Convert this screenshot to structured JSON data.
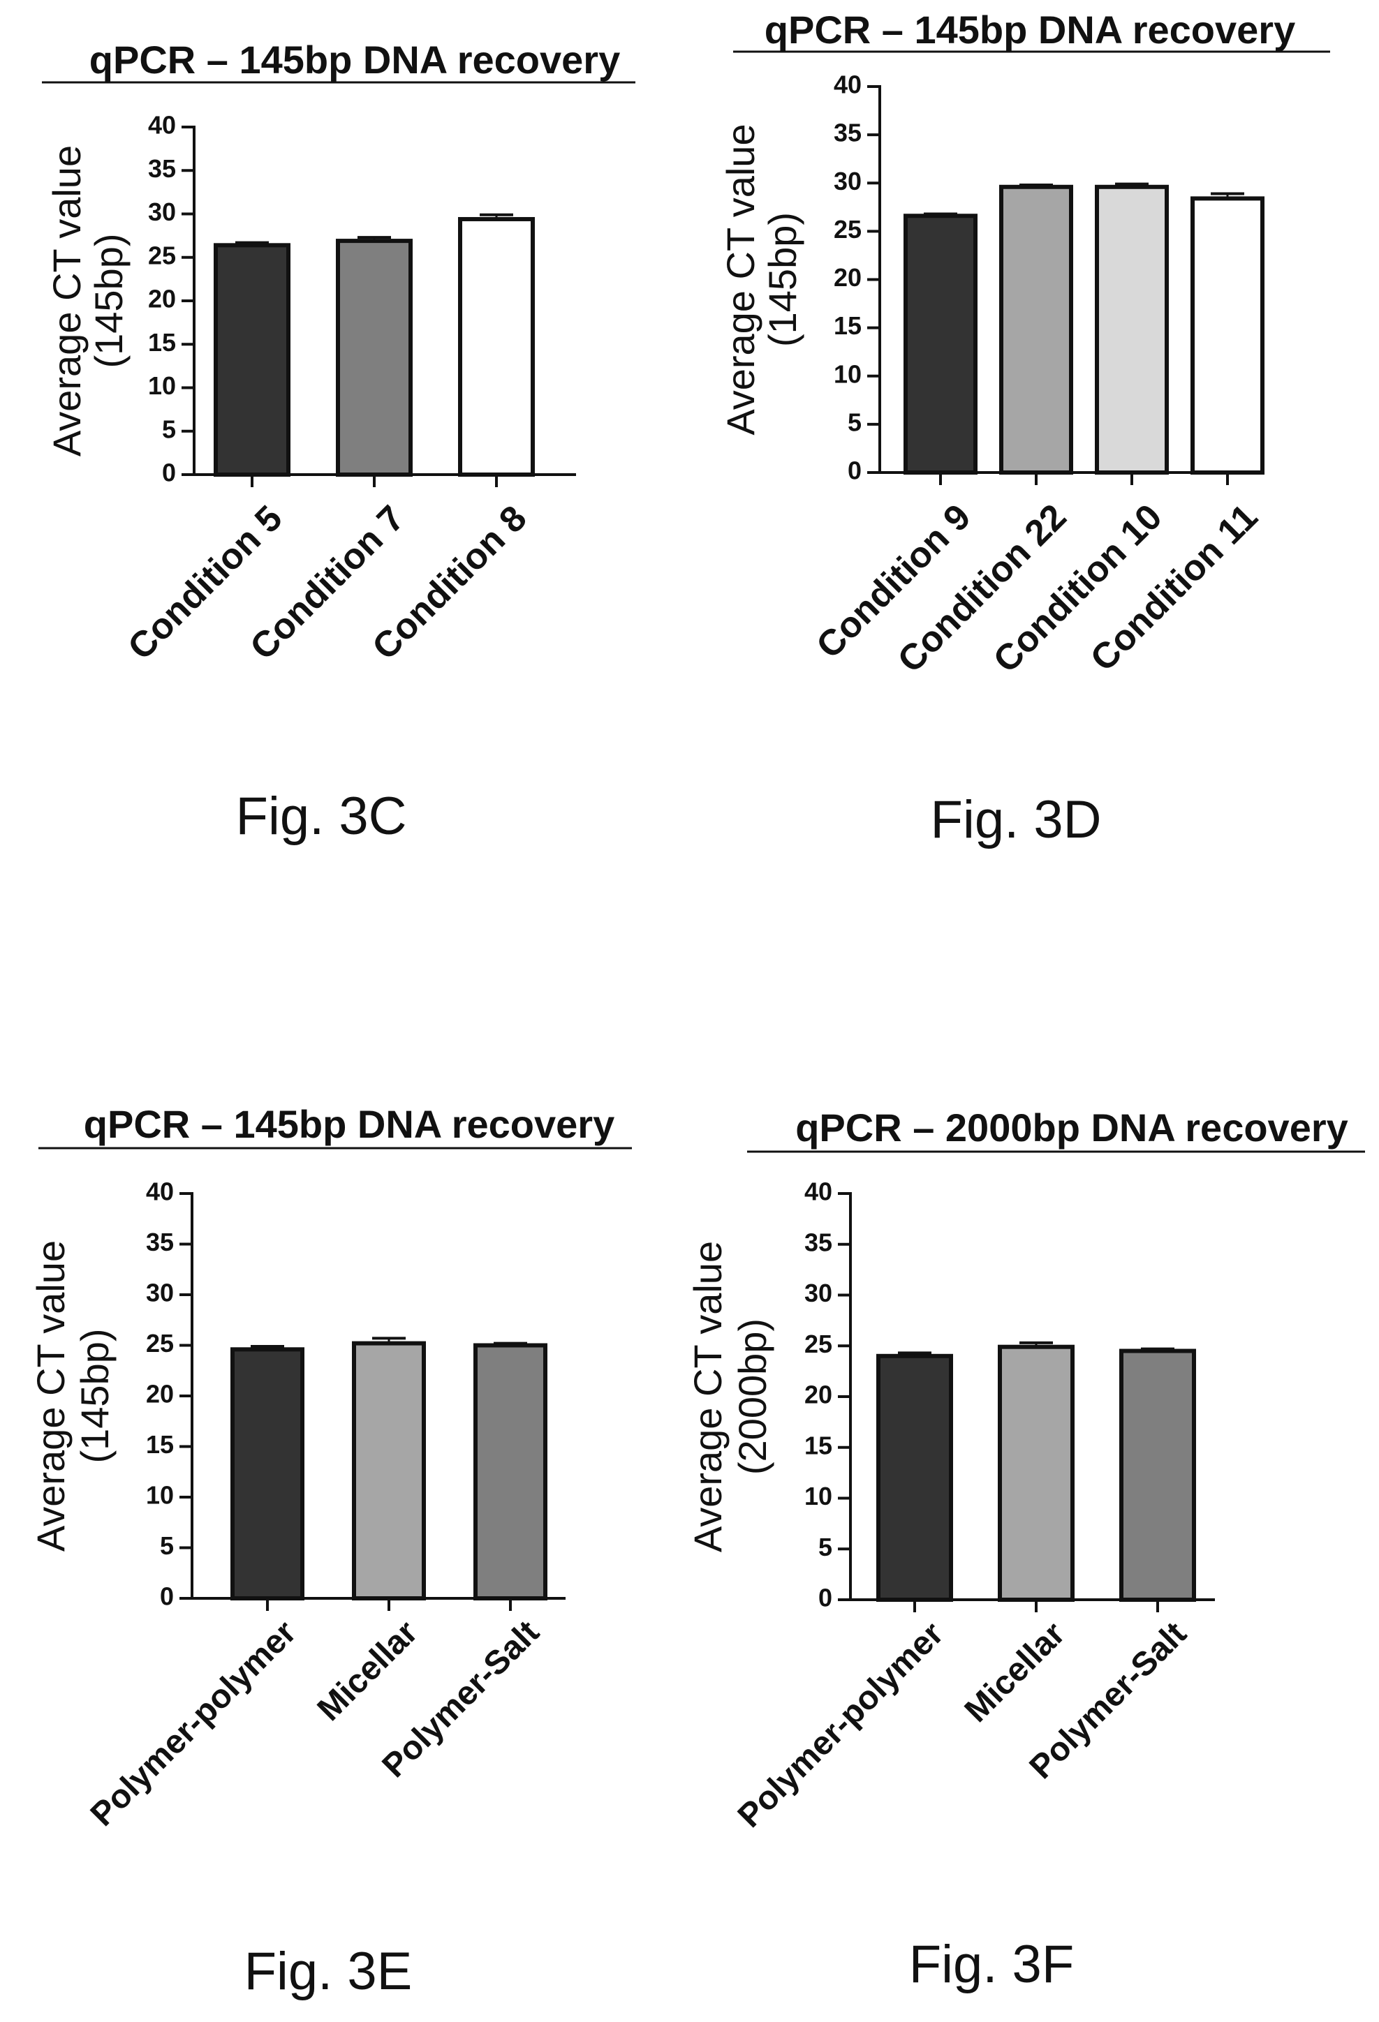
{
  "chart_data": [
    {
      "type": "bar",
      "title": "qPCR – 145bp DNA recovery",
      "ylabel_line1": "Average CT value",
      "ylabel_line2": "(145bp)",
      "categories": [
        "Condition 5",
        "Condition 7",
        "Condition 8"
      ],
      "values": [
        26.4,
        26.9,
        29.4
      ],
      "errors": [
        0.3,
        0.4,
        0.5
      ],
      "colors": [
        "#333333",
        "#7f7f7f",
        "#ffffff"
      ],
      "ylim": [
        0,
        40
      ],
      "yticks": [
        "0",
        "5",
        "10",
        "15",
        "20",
        "25",
        "30",
        "35",
        "40"
      ],
      "grid": false,
      "figure_label": "Fig. 3C"
    },
    {
      "type": "bar",
      "title": "qPCR – 145bp DNA recovery",
      "ylabel_line1": "Average CT value",
      "ylabel_line2": "(145bp)",
      "categories": [
        "Condition 9",
        "Condition 22",
        "Condition 10",
        "Condition 11"
      ],
      "values": [
        26.6,
        29.6,
        29.6,
        28.4
      ],
      "errors": [
        0.2,
        0.2,
        0.3,
        0.5
      ],
      "colors": [
        "#333333",
        "#a6a6a6",
        "#d9d9d9",
        "#ffffff"
      ],
      "ylim": [
        0,
        40
      ],
      "yticks": [
        "0",
        "5",
        "10",
        "15",
        "20",
        "25",
        "30",
        "35",
        "40"
      ],
      "grid": false,
      "figure_label": "Fig. 3D"
    },
    {
      "type": "bar",
      "title": "qPCR – 145bp DNA recovery",
      "ylabel_line1": "Average CT value",
      "ylabel_line2": "(145bp)",
      "categories": [
        "Polymer-polymer",
        "Micellar",
        "Polymer-Salt"
      ],
      "values": [
        24.6,
        25.2,
        25.0
      ],
      "errors": [
        0.3,
        0.5,
        0.2
      ],
      "colors": [
        "#333333",
        "#a6a6a6",
        "#7f7f7f"
      ],
      "ylim": [
        0,
        40
      ],
      "yticks": [
        "0",
        "5",
        "10",
        "15",
        "20",
        "25",
        "30",
        "35",
        "40"
      ],
      "grid": false,
      "figure_label": "Fig. 3E"
    },
    {
      "type": "bar",
      "title": "qPCR – 2000bp DNA recovery",
      "ylabel_line1": "Average CT value",
      "ylabel_line2": "(2000bp)",
      "categories": [
        "Polymer-polymer",
        "Micellar",
        "Polymer-Salt"
      ],
      "values": [
        24.0,
        24.9,
        24.5
      ],
      "errors": [
        0.3,
        0.4,
        0.2
      ],
      "colors": [
        "#333333",
        "#a6a6a6",
        "#7f7f7f"
      ],
      "ylim": [
        0,
        40
      ],
      "yticks": [
        "0",
        "5",
        "10",
        "15",
        "20",
        "25",
        "30",
        "35",
        "40"
      ],
      "grid": false,
      "figure_label": "Fig. 3F"
    }
  ]
}
